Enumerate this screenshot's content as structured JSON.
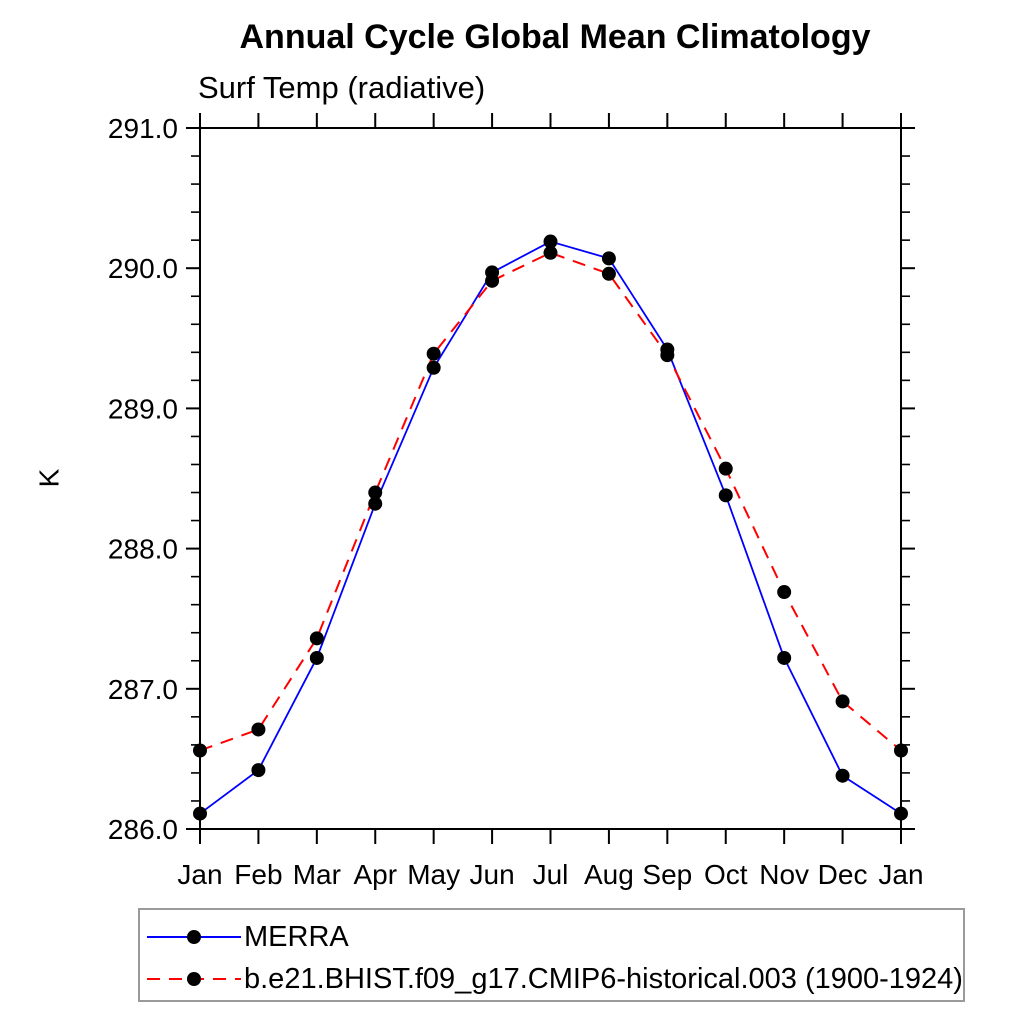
{
  "chart_data": {
    "type": "line",
    "title": "Annual Cycle Global Mean Climatology",
    "subtitle": "Surf Temp (radiative)",
    "ylabel": "K",
    "categories": [
      "Jan",
      "Feb",
      "Mar",
      "Apr",
      "May",
      "Jun",
      "Jul",
      "Aug",
      "Sep",
      "Oct",
      "Nov",
      "Dec",
      "Jan"
    ],
    "ylim": [
      286.0,
      291.0
    ],
    "ytick_labels": [
      "286.0",
      "287.0",
      "288.0",
      "289.0",
      "290.0",
      "291.0"
    ],
    "ytick_major_step": 1.0,
    "ytick_minor_step": 0.2,
    "grid": false,
    "legend_position": "bottom-left",
    "axis_color": "#000000",
    "marker_color": "#000000",
    "series": [
      {
        "name": "MERRA",
        "color": "#0000ff",
        "line_style": "solid",
        "marker": "filled-circle",
        "values": [
          286.11,
          286.42,
          287.22,
          288.32,
          289.29,
          289.97,
          290.19,
          290.07,
          289.42,
          288.38,
          287.22,
          286.38,
          286.11
        ]
      },
      {
        "name": "b.e21.BHIST.f09_g17.CMIP6-historical.003 (1900-1924)",
        "color": "#ff0000",
        "line_style": "dashed",
        "marker": "filled-circle",
        "values": [
          286.56,
          286.71,
          287.36,
          288.4,
          289.39,
          289.91,
          290.11,
          289.96,
          289.38,
          288.57,
          287.69,
          286.91,
          286.56
        ]
      }
    ]
  }
}
